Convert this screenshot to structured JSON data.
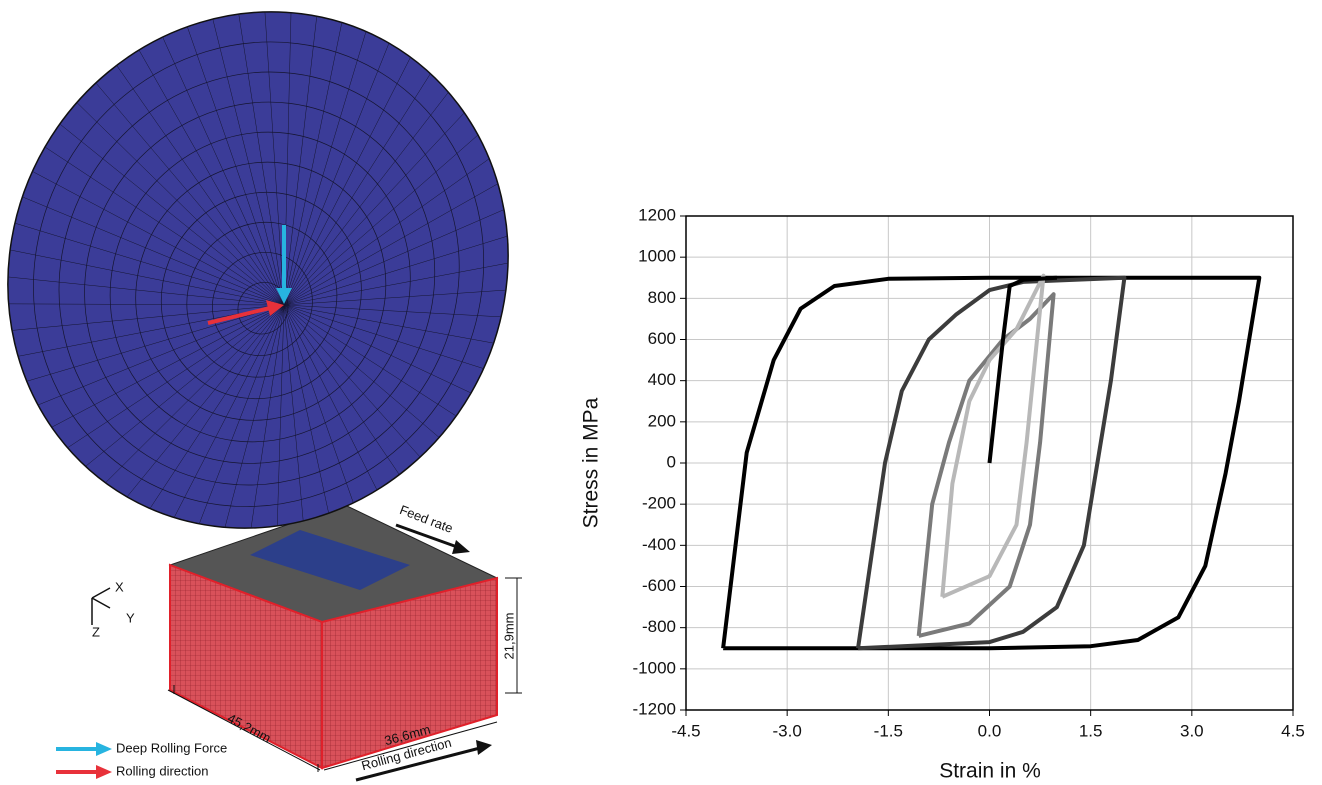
{
  "diagram": {
    "feed_rate": "Feed rate",
    "axis_x": "X",
    "axis_y": "Y",
    "axis_z": "Z",
    "height": "21,9mm",
    "length": "45,2mm",
    "width": "36,6mm",
    "rolling_direction": "Rolling direction",
    "legend": [
      {
        "label": "Deep Rolling Force",
        "color": "#27b4e0"
      },
      {
        "label": "Rolling direction",
        "color": "#e8313a"
      }
    ]
  },
  "chart_data": {
    "type": "line",
    "xlabel": "Strain in %",
    "ylabel": "Stress in MPa",
    "xlim": [
      -4.5,
      4.5
    ],
    "ylim": [
      -1200,
      1200
    ],
    "xticks": [
      -4.5,
      {
        "value": -3,
        "label": "-3.0"
      },
      -1.5,
      {
        "value": 0,
        "label": "0.0"
      },
      1.5,
      {
        "value": 3,
        "label": "3.0"
      },
      4.5
    ],
    "yticks": [
      -1200,
      -1000,
      -800,
      -600,
      -400,
      -200,
      0,
      200,
      400,
      600,
      800,
      1000,
      1200
    ],
    "grid": true,
    "series": [
      {
        "color": "#000000",
        "x": [
          -3.95,
          -3.6,
          -3.2,
          -2.8,
          -2.3,
          -1.5,
          0,
          4.0,
          3.7,
          3.5,
          3.2,
          2.8,
          2.2,
          1.5,
          0,
          -3.95
        ],
        "values": [
          -900,
          50,
          500,
          750,
          860,
          895,
          900,
          900,
          300,
          -50,
          -500,
          -750,
          -860,
          -890,
          -900,
          -900
        ]
      },
      {
        "color": "#3c3c3c",
        "x": [
          -1.95,
          -1.55,
          -1.3,
          -0.9,
          -0.5,
          0,
          0.5,
          2.0,
          1.8,
          1.6,
          1.4,
          1.0,
          0.5,
          0,
          -1.95
        ],
        "values": [
          -900,
          0,
          350,
          600,
          720,
          840,
          880,
          900,
          400,
          0,
          -400,
          -700,
          -820,
          -870,
          -900
        ]
      },
      {
        "color": "#7a7a7a",
        "x": [
          -1.05,
          -0.85,
          -0.6,
          -0.3,
          0.2,
          0.6,
          0.95,
          0.75,
          0.6,
          0.3,
          -0.3,
          -1.05
        ],
        "values": [
          -840,
          -200,
          100,
          400,
          600,
          700,
          820,
          100,
          -300,
          -600,
          -780,
          -840
        ]
      },
      {
        "color": "#b8b8b8",
        "x": [
          -0.7,
          -0.55,
          -0.3,
          0,
          0.4,
          0.8,
          0.55,
          0.4,
          0,
          -0.7
        ],
        "values": [
          -650,
          -100,
          300,
          500,
          650,
          910,
          100,
          -300,
          -550,
          -650
        ]
      },
      {
        "color": "#000000",
        "x": [
          0,
          0.1,
          0.2,
          0.3,
          0.5,
          1.0
        ],
        "values": [
          0,
          300,
          600,
          860,
          890,
          900
        ]
      }
    ]
  }
}
